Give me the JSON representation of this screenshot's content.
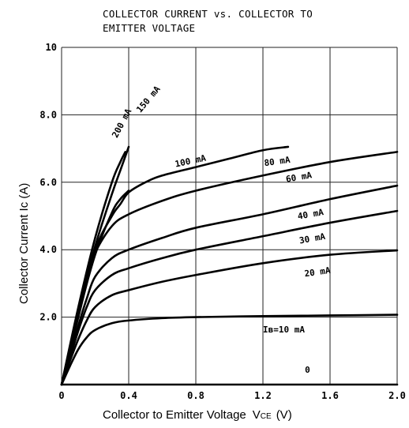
{
  "chart_data": {
    "type": "line",
    "title_line1": "COLLECTOR CURRENT vs. COLLECTOR TO",
    "title_line2": "EMITTER VOLTAGE",
    "xlabel": "Collector to Emitter Voltage",
    "xlabel_symbol": "V",
    "xlabel_sub": "CE",
    "xlabel_unit": "(V)",
    "ylabel": "Collector Current  Ic  (A)",
    "xlim": [
      0,
      2.0
    ],
    "ylim": [
      0,
      10
    ],
    "x_ticks": [
      {
        "value": 0,
        "label": "0"
      },
      {
        "value": 0.4,
        "label": "0.4"
      },
      {
        "value": 0.8,
        "label": "0.8"
      },
      {
        "value": 1.2,
        "label": "1.2"
      },
      {
        "value": 1.6,
        "label": "1.6"
      },
      {
        "value": 2.0,
        "label": "2.0"
      }
    ],
    "y_ticks": [
      {
        "value": 2.0,
        "label": "2.0"
      },
      {
        "value": 4.0,
        "label": "4.0"
      },
      {
        "value": 6.0,
        "label": "6.0"
      },
      {
        "value": 8.0,
        "label": "8.0"
      },
      {
        "value": 10,
        "label": "10"
      }
    ],
    "grid": true,
    "series": [
      {
        "name": "Iв=10 mA",
        "x": [
          0,
          0.05,
          0.1,
          0.15,
          0.2,
          0.3,
          0.4,
          0.6,
          0.8,
          1.2,
          1.6,
          2.0
        ],
        "y": [
          0,
          0.55,
          1.05,
          1.4,
          1.62,
          1.82,
          1.9,
          1.97,
          2.0,
          2.03,
          2.05,
          2.07
        ]
      },
      {
        "name": "20 mA",
        "x": [
          0,
          0.05,
          0.1,
          0.15,
          0.2,
          0.3,
          0.4,
          0.6,
          0.8,
          1.2,
          1.6,
          2.0
        ],
        "y": [
          0,
          0.7,
          1.35,
          1.9,
          2.3,
          2.65,
          2.8,
          3.05,
          3.25,
          3.6,
          3.85,
          3.98
        ]
      },
      {
        "name": "30 mA",
        "x": [
          0,
          0.05,
          0.1,
          0.15,
          0.2,
          0.3,
          0.4,
          0.6,
          0.8,
          1.2,
          1.6,
          2.0
        ],
        "y": [
          0,
          0.8,
          1.6,
          2.3,
          2.8,
          3.25,
          3.45,
          3.75,
          4.0,
          4.4,
          4.8,
          5.15
        ]
      },
      {
        "name": "40 mA",
        "x": [
          0,
          0.05,
          0.1,
          0.15,
          0.2,
          0.3,
          0.4,
          0.6,
          0.8,
          1.2,
          1.6,
          2.0
        ],
        "y": [
          0,
          0.85,
          1.75,
          2.55,
          3.2,
          3.75,
          4.0,
          4.35,
          4.65,
          5.05,
          5.5,
          5.9
        ]
      },
      {
        "name": "60 mA",
        "x": [
          0,
          0.05,
          0.1,
          0.15,
          0.2,
          0.3,
          0.4,
          0.6,
          0.8,
          1.2,
          1.6,
          2.0
        ],
        "y": [
          0,
          1.0,
          2.0,
          3.0,
          3.9,
          4.7,
          5.05,
          5.45,
          5.75,
          6.2,
          6.6,
          6.9
        ]
      },
      {
        "name": "80 mA",
        "x": [
          0,
          0.1,
          0.2,
          0.3,
          0.35,
          0.4
        ],
        "y": [
          0,
          2.05,
          3.85,
          5.1,
          5.5,
          5.75
        ]
      },
      {
        "name": "100 mA",
        "x": [
          0,
          0.1,
          0.2,
          0.3,
          0.35,
          0.4,
          0.5,
          0.6,
          0.8,
          1.0,
          1.2,
          1.35
        ],
        "y": [
          0,
          2.1,
          4.0,
          5.0,
          5.35,
          5.7,
          6.0,
          6.2,
          6.45,
          6.7,
          6.95,
          7.05
        ]
      },
      {
        "name": "150 mA",
        "x": [
          0,
          0.1,
          0.2,
          0.3,
          0.35,
          0.4
        ],
        "y": [
          0,
          2.2,
          4.1,
          5.65,
          6.35,
          7.05
        ]
      },
      {
        "name": "200 mA",
        "x": [
          0,
          0.1,
          0.2,
          0.3,
          0.35,
          0.38
        ],
        "y": [
          0,
          2.3,
          4.35,
          6.0,
          6.6,
          6.9
        ]
      },
      {
        "name": "0",
        "x": [
          0,
          2.0
        ],
        "y": [
          0,
          0
        ]
      }
    ],
    "annotations": [
      {
        "text": "200 mA",
        "x": 0.33,
        "y": 7.3,
        "angle": -62
      },
      {
        "text": "150 mA",
        "x": 0.47,
        "y": 8.05,
        "angle": -50
      },
      {
        "text": "100 mA",
        "x": 0.68,
        "y": 6.45,
        "angle": -12
      },
      {
        "text": "80 mA",
        "x": 1.21,
        "y": 6.48,
        "angle": -8
      },
      {
        "text": "60 mA",
        "x": 1.34,
        "y": 6.0,
        "angle": -10
      },
      {
        "text": "40 mA",
        "x": 1.41,
        "y": 4.9,
        "angle": -10
      },
      {
        "text": "30 mA",
        "x": 1.42,
        "y": 4.18,
        "angle": -10
      },
      {
        "text": "20 mA",
        "x": 1.45,
        "y": 3.2,
        "angle": -8
      },
      {
        "text": "Iв=10 mA",
        "x": 1.2,
        "y": 1.55,
        "angle": 0
      },
      {
        "text": "0",
        "x": 1.45,
        "y": 0.35,
        "angle": 0
      }
    ]
  }
}
